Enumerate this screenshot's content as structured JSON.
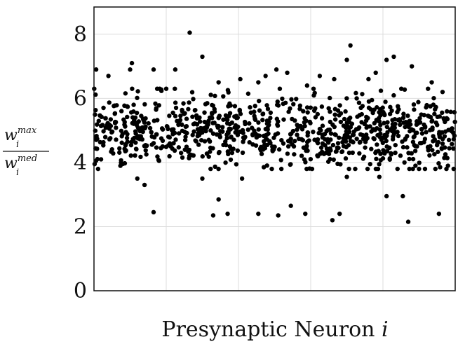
{
  "chart_data": {
    "type": "scatter",
    "title": "",
    "xlabel_text": "Presynaptic Neuron ",
    "xlabel_var": "i",
    "ylabel": {
      "numerator_base": "w",
      "numerator_sup": "max",
      "numerator_sub": "i",
      "denominator_base": "w",
      "denominator_sup": "med",
      "denominator_sub": "i"
    },
    "ylim": [
      0,
      8.85
    ],
    "yticks": [
      "0",
      "2",
      "4",
      "6",
      "8"
    ],
    "xlim": [
      0,
      1000
    ],
    "x_gridlines": [
      200,
      400,
      600,
      800,
      1000
    ],
    "grid": true,
    "marker_color": "#000000",
    "outliers": [
      [
        6,
        6.9
      ],
      [
        40,
        6.7
      ],
      [
        100,
        6.9
      ],
      [
        105,
        7.1
      ],
      [
        165,
        6.9
      ],
      [
        175,
        6.3
      ],
      [
        200,
        6.3
      ],
      [
        225,
        6.9
      ],
      [
        265,
        8.05
      ],
      [
        300,
        7.3
      ],
      [
        345,
        6.5
      ],
      [
        405,
        6.6
      ],
      [
        455,
        6.5
      ],
      [
        475,
        6.7
      ],
      [
        505,
        6.9
      ],
      [
        535,
        6.8
      ],
      [
        590,
        6.4
      ],
      [
        625,
        6.7
      ],
      [
        665,
        6.6
      ],
      [
        700,
        7.2
      ],
      [
        710,
        7.65
      ],
      [
        760,
        6.6
      ],
      [
        780,
        6.8
      ],
      [
        810,
        7.2
      ],
      [
        830,
        7.3
      ],
      [
        880,
        7.0
      ],
      [
        935,
        6.5
      ],
      [
        965,
        6.2
      ],
      [
        120,
        3.5
      ],
      [
        140,
        3.3
      ],
      [
        165,
        2.45
      ],
      [
        300,
        3.5
      ],
      [
        330,
        2.35
      ],
      [
        345,
        2.85
      ],
      [
        370,
        2.4
      ],
      [
        410,
        3.5
      ],
      [
        455,
        2.4
      ],
      [
        510,
        2.35
      ],
      [
        545,
        2.65
      ],
      [
        585,
        2.4
      ],
      [
        660,
        2.2
      ],
      [
        680,
        2.4
      ],
      [
        700,
        3.55
      ],
      [
        790,
        3.55
      ],
      [
        810,
        2.95
      ],
      [
        855,
        2.95
      ],
      [
        870,
        2.15
      ],
      [
        890,
        3.9
      ],
      [
        955,
        2.4
      ],
      [
        980,
        3.9
      ]
    ],
    "bulk": {
      "count": 920,
      "x_range": [
        0,
        1000
      ],
      "center": 4.95,
      "spread": 0.55,
      "min": 3.8,
      "max": 6.3
    }
  }
}
